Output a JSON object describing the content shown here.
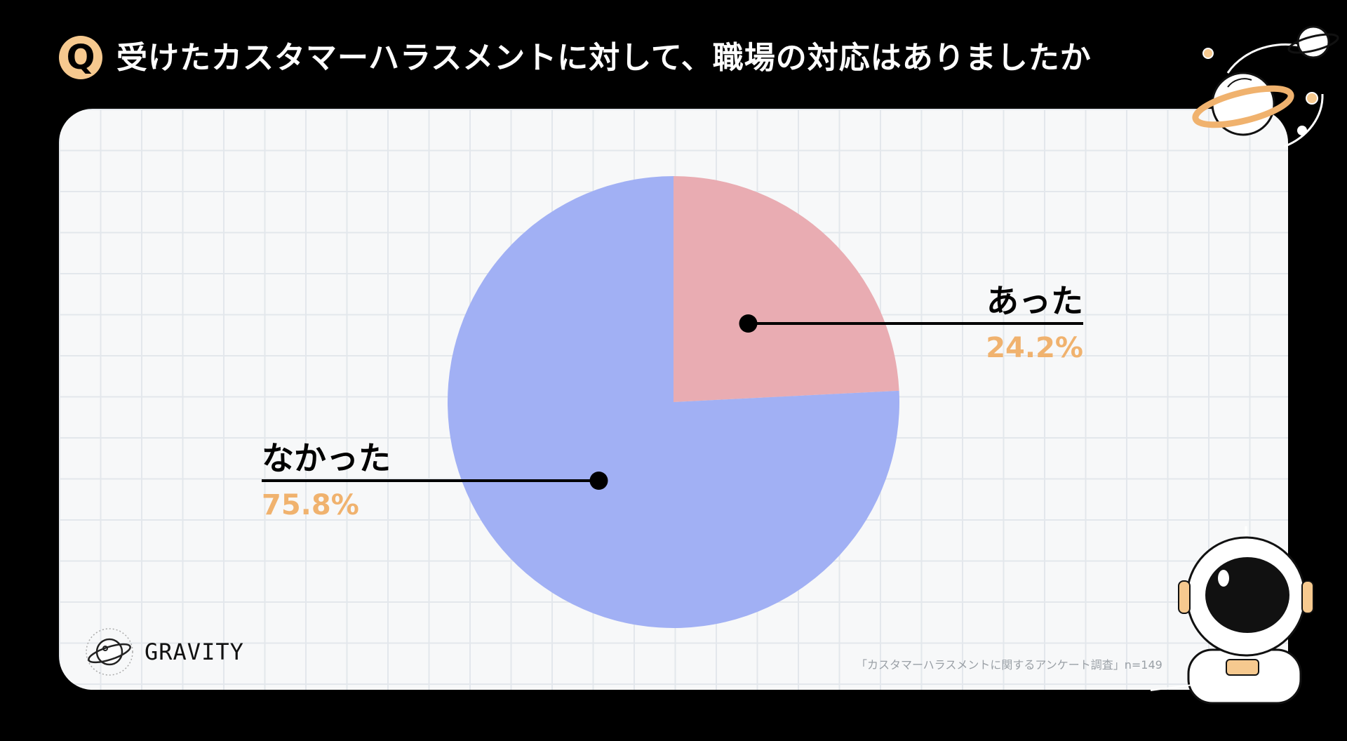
{
  "header": {
    "badge": "Q",
    "question": "受けたカスタマーハラスメントに対して、職場の対応はありましたか"
  },
  "chart_data": {
    "type": "pie",
    "title": "受けたカスタマーハラスメントに対して、職場の対応はありましたか",
    "slices": [
      {
        "label": "あった",
        "value": 24.2,
        "display": "24.2%",
        "color": "#e9acb2"
      },
      {
        "label": "なかった",
        "value": 75.8,
        "display": "75.8%",
        "color": "#a1b0f4"
      }
    ],
    "start_angle_deg": 0,
    "direction": "clockwise"
  },
  "footer": {
    "brand": "GRAVITY",
    "source": "「カスタマーハラスメントに関するアンケート調査」n=149"
  },
  "colors": {
    "accent": "#f0b26e",
    "badge": "#f6c98f"
  }
}
